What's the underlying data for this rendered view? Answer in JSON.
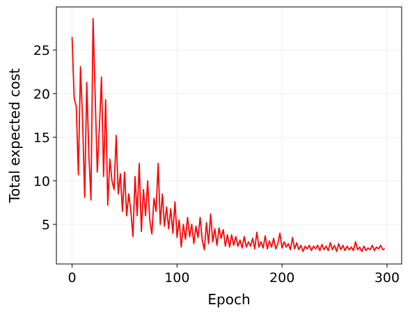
{
  "chart_data": {
    "type": "line",
    "xlabel": "Epoch",
    "ylabel": "Total expected cost",
    "color": "#ff0000",
    "grid": true,
    "xlim": [
      -14.95,
      313.95
    ],
    "ylim": [
      0.46,
      29.94
    ],
    "xticks": [
      0,
      100,
      200,
      300
    ],
    "yticks": [
      5,
      10,
      15,
      20,
      25
    ],
    "x": [
      0,
      2,
      4,
      6,
      8,
      10,
      12,
      14,
      16,
      18,
      20,
      22,
      24,
      26,
      28,
      30,
      32,
      34,
      36,
      38,
      40,
      42,
      44,
      46,
      48,
      50,
      52,
      54,
      56,
      58,
      60,
      62,
      64,
      66,
      68,
      70,
      72,
      74,
      76,
      78,
      80,
      82,
      84,
      86,
      88,
      90,
      92,
      94,
      96,
      98,
      100,
      102,
      104,
      106,
      108,
      110,
      112,
      114,
      116,
      118,
      120,
      122,
      124,
      126,
      128,
      130,
      132,
      134,
      136,
      138,
      140,
      142,
      144,
      146,
      148,
      150,
      152,
      154,
      156,
      158,
      160,
      162,
      164,
      166,
      168,
      170,
      172,
      174,
      176,
      178,
      180,
      182,
      184,
      186,
      188,
      190,
      192,
      194,
      196,
      198,
      200,
      202,
      204,
      206,
      208,
      210,
      212,
      214,
      216,
      218,
      220,
      222,
      224,
      226,
      228,
      230,
      232,
      234,
      236,
      238,
      240,
      242,
      244,
      246,
      248,
      250,
      252,
      254,
      256,
      258,
      260,
      262,
      264,
      266,
      268,
      270,
      272,
      274,
      276,
      278,
      280,
      282,
      284,
      286,
      288,
      290,
      292,
      294,
      296,
      298
    ],
    "values": [
      26.5,
      19.5,
      18.5,
      10.7,
      23.1,
      17,
      8.1,
      21.3,
      13,
      7.8,
      28.6,
      19.8,
      11,
      16,
      21.9,
      10.5,
      19.3,
      7.2,
      12.5,
      10,
      9,
      15.2,
      8.5,
      10.8,
      6.5,
      11,
      6,
      8.5,
      6.5,
      3.6,
      10.5,
      6,
      12,
      4.2,
      9,
      6,
      10,
      5.5,
      3.9,
      8,
      6.5,
      12,
      5,
      8.5,
      4.8,
      7,
      4.5,
      6.8,
      4,
      7.6,
      3.5,
      5.5,
      2.4,
      5,
      3.3,
      5.8,
      3.6,
      5,
      2.8,
      4.8,
      3.5,
      5.8,
      3.2,
      2.1,
      5.2,
      2.8,
      6.2,
      3,
      4.5,
      2.6,
      4.6,
      3.4,
      4.4,
      2.5,
      3.8,
      2.4,
      3.8,
      2.6,
      3.6,
      2.5,
      3.2,
      2.3,
      3.6,
      2.4,
      3.0,
      2.5,
      3.4,
      2.2,
      4.1,
      2.4,
      3.0,
      2.3,
      3.7,
      2.2,
      3.1,
      2.4,
      3.4,
      2.2,
      2.8,
      4.0,
      2.3,
      3.0,
      2.4,
      2.8,
      2.1,
      3.5,
      2.2,
      2.9,
      2.1,
      2.6,
      1.9,
      2.5,
      2.2,
      2.6,
      2.0,
      2.5,
      2.2,
      2.6,
      2.0,
      2.7,
      2.1,
      2.5,
      2.0,
      2.9,
      2.1,
      2.6,
      1.9,
      2.8,
      2.1,
      2.6,
      2.0,
      2.5,
      2.1,
      2.4,
      2.0,
      3.0,
      2.1,
      2.4,
      1.9,
      2.5,
      2.0,
      2.3,
      2.1,
      2.6,
      2.0,
      2.4,
      2.2,
      2.6,
      2.1,
      2.2
    ]
  }
}
